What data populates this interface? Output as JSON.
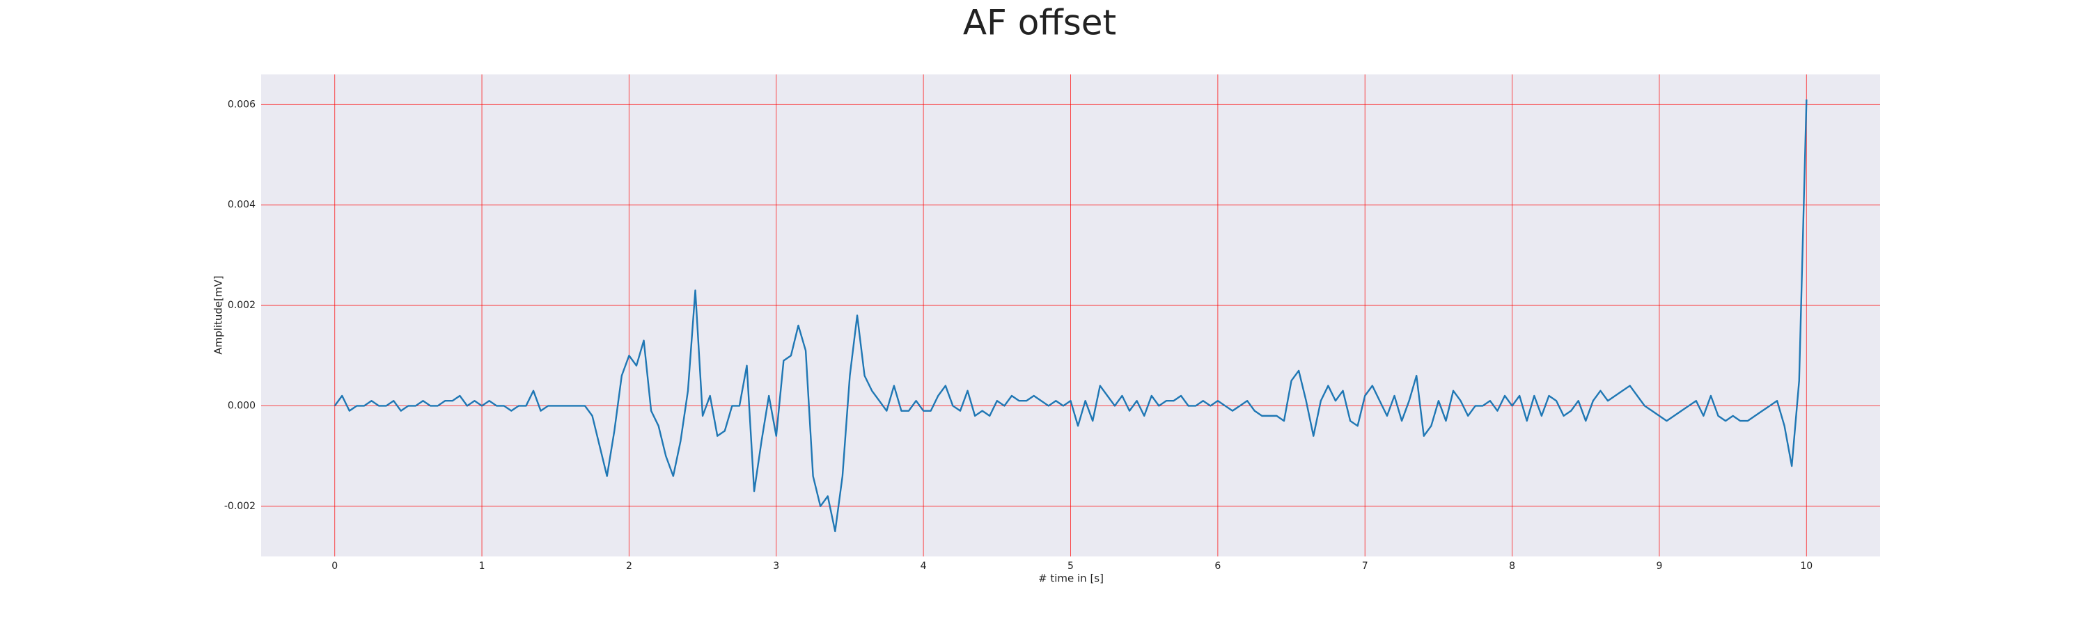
{
  "chart_data": {
    "type": "line",
    "title": "AF offset",
    "xlabel": "# time in [s]",
    "ylabel": "Amplitude[mV]",
    "x": [
      0,
      0.05,
      0.1,
      0.15,
      0.2,
      0.25,
      0.3,
      0.35,
      0.4,
      0.45,
      0.5,
      0.55,
      0.6,
      0.65,
      0.7,
      0.75,
      0.8,
      0.85,
      0.9,
      0.95,
      1,
      1.05,
      1.1,
      1.15,
      1.2,
      1.25,
      1.3,
      1.35,
      1.4,
      1.45,
      1.5,
      1.55,
      1.6,
      1.65,
      1.7,
      1.75,
      1.8,
      1.85,
      1.9,
      1.95,
      2,
      2.05,
      2.1,
      2.15,
      2.2,
      2.25,
      2.3,
      2.35,
      2.4,
      2.45,
      2.5,
      2.55,
      2.6,
      2.65,
      2.7,
      2.75,
      2.8,
      2.85,
      2.9,
      2.95,
      3,
      3.05,
      3.1,
      3.15,
      3.2,
      3.25,
      3.3,
      3.35,
      3.4,
      3.45,
      3.5,
      3.55,
      3.6,
      3.65,
      3.7,
      3.75,
      3.8,
      3.85,
      3.9,
      3.95,
      4,
      4.05,
      4.1,
      4.15,
      4.2,
      4.25,
      4.3,
      4.35,
      4.4,
      4.45,
      4.5,
      4.55,
      4.6,
      4.65,
      4.7,
      4.75,
      4.8,
      4.85,
      4.9,
      4.95,
      5,
      5.05,
      5.1,
      5.15,
      5.2,
      5.25,
      5.3,
      5.35,
      5.4,
      5.45,
      5.5,
      5.55,
      5.6,
      5.65,
      5.7,
      5.75,
      5.8,
      5.85,
      5.9,
      5.95,
      6,
      6.05,
      6.1,
      6.15,
      6.2,
      6.25,
      6.3,
      6.35,
      6.4,
      6.45,
      6.5,
      6.55,
      6.6,
      6.65,
      6.7,
      6.75,
      6.8,
      6.85,
      6.9,
      6.95,
      7,
      7.05,
      7.1,
      7.15,
      7.2,
      7.25,
      7.3,
      7.35,
      7.4,
      7.45,
      7.5,
      7.55,
      7.6,
      7.65,
      7.7,
      7.75,
      7.8,
      7.85,
      7.9,
      7.95,
      8,
      8.05,
      8.1,
      8.15,
      8.2,
      8.25,
      8.3,
      8.35,
      8.4,
      8.45,
      8.5,
      8.55,
      8.6,
      8.65,
      8.7,
      8.75,
      8.8,
      8.85,
      8.9,
      8.95,
      9,
      9.05,
      9.1,
      9.15,
      9.2,
      9.25,
      9.3,
      9.35,
      9.4,
      9.45,
      9.5,
      9.55,
      9.6,
      9.65,
      9.7,
      9.75,
      9.8,
      9.85,
      9.9,
      9.95,
      10
    ],
    "series": [
      {
        "color": "#1f77b4",
        "values": [
          0,
          0.0002,
          -0.0001,
          0,
          0,
          0.0001,
          0,
          0,
          0.0001,
          -0.0001,
          0,
          0,
          0.0001,
          0,
          0,
          0.0001,
          0.0001,
          0.0002,
          0,
          0.0001,
          0,
          0.0001,
          0,
          0,
          -0.0001,
          0,
          0,
          0.0003,
          -0.0001,
          0,
          0,
          0,
          0,
          0,
          0,
          -0.0002,
          -0.0008,
          -0.0014,
          -0.0005,
          0.0006,
          0.001,
          0.0008,
          0.0013,
          -0.0001,
          -0.0004,
          -0.001,
          -0.0014,
          -0.0007,
          0.0003,
          0.0023,
          -0.0002,
          0.0002,
          -0.0006,
          -0.0005,
          0,
          0,
          0.0008,
          -0.0017,
          -0.0007,
          0.0002,
          -0.0006,
          0.0009,
          0.001,
          0.0016,
          0.0011,
          -0.0014,
          -0.002,
          -0.0018,
          -0.0025,
          -0.0014,
          0.0006,
          0.0018,
          0.0006,
          0.0003,
          0.0001,
          -0.0001,
          0.0004,
          -0.0001,
          -0.0001,
          0.0001,
          -0.0001,
          -0.0001,
          0.0002,
          0.0004,
          0,
          -0.0001,
          0.0003,
          -0.0002,
          -0.0001,
          -0.0002,
          0.0001,
          0,
          0.0002,
          0.0001,
          0.0001,
          0.0002,
          0.0001,
          0,
          0.0001,
          0,
          0.0001,
          -0.0004,
          0.0001,
          -0.0003,
          0.0004,
          0.0002,
          0,
          0.0002,
          -0.0001,
          0.0001,
          -0.0002,
          0.0002,
          0,
          0.0001,
          0.0001,
          0.0002,
          0,
          0,
          0.0001,
          0,
          0.0001,
          0,
          -0.0001,
          0,
          0.0001,
          -0.0001,
          -0.0002,
          -0.0002,
          -0.0002,
          -0.0003,
          0.0005,
          0.0007,
          0.0001,
          -0.0006,
          0.0001,
          0.0004,
          0.0001,
          0.0003,
          -0.0003,
          -0.0004,
          0.0002,
          0.0004,
          0.0001,
          -0.0002,
          0.0002,
          -0.0003,
          0.0001,
          0.0006,
          -0.0006,
          -0.0004,
          0.0001,
          -0.0003,
          0.0003,
          0.0001,
          -0.0002,
          0,
          0,
          0.0001,
          -0.0001,
          0.0002,
          0,
          0.0002,
          -0.0003,
          0.0002,
          -0.0002,
          0.0002,
          0.0001,
          -0.0002,
          -0.0001,
          0.0001,
          -0.0003,
          0.0001,
          0.0003,
          0.0001,
          0.0002,
          0.0003,
          0.0004,
          0.0002,
          0,
          -0.0001,
          -0.0002,
          -0.0003,
          -0.0002,
          -0.0001,
          0,
          0.0001,
          -0.0002,
          0.0002,
          -0.0002,
          -0.0003,
          -0.0002,
          -0.0003,
          -0.0003,
          -0.0002,
          -0.0001,
          0,
          0.0001,
          -0.0004,
          -0.0012,
          0.0005,
          0.0061
        ]
      }
    ],
    "xlim": [
      -0.5,
      10.5
    ],
    "xticks": [
      0,
      1,
      2,
      3,
      4,
      5,
      6,
      7,
      8,
      9,
      10
    ],
    "ylim": [
      -0.003,
      0.0066
    ],
    "yticks": [
      -0.002,
      {
        "value": 0,
        "label": "0.000"
      },
      0.002,
      0.004,
      0.006
    ],
    "grid": true,
    "grid_color": "#ff0000",
    "background": "#eaeaf2"
  }
}
